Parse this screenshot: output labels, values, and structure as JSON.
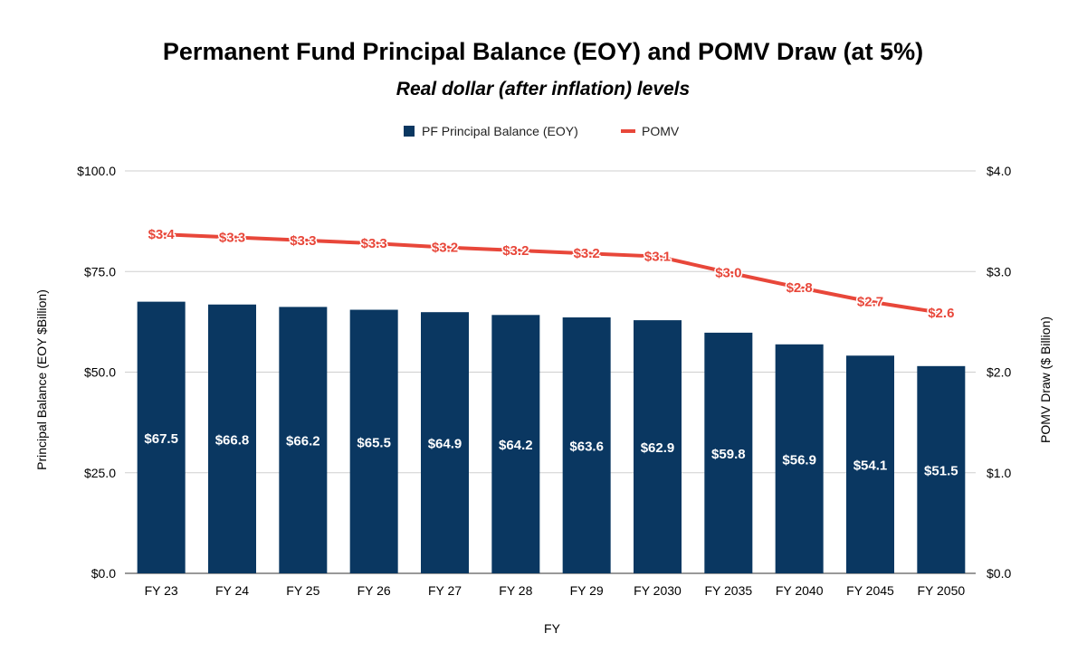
{
  "chart_data": {
    "type": "bar",
    "title": "Permanent Fund Principal Balance (EOY) and POMV Draw (at 5%)",
    "subtitle": "Real dollar (after inflation) levels",
    "xlabel": "FY",
    "ylabel": "Principal Balance (EOY $Billion)",
    "y2label": "POMV Draw ($ Billion)",
    "categories": [
      "FY 23",
      "FY 24",
      "FY 25",
      "FY 26",
      "FY 27",
      "FY 28",
      "FY 29",
      "FY 2030",
      "FY 2035",
      "FY 2040",
      "FY 2045",
      "FY 2050"
    ],
    "ylim": [
      0,
      100
    ],
    "y2lim": [
      0,
      4
    ],
    "yticks": [
      "$0.0",
      "$25.0",
      "$50.0",
      "$75.0",
      "$100.0"
    ],
    "y2ticks": [
      "$0.0",
      "$1.0",
      "$2.0",
      "$3.0",
      "$4.0"
    ],
    "grid": true,
    "legend_position": "top-center",
    "series": [
      {
        "name": "PF Principal Balance (EOY)",
        "type": "bar",
        "axis": "left",
        "color": "#0a3761",
        "values": [
          67.5,
          66.8,
          66.2,
          65.5,
          64.9,
          64.2,
          63.6,
          62.9,
          59.8,
          56.9,
          54.1,
          51.5
        ],
        "labels": [
          "$67.5",
          "$66.8",
          "$66.2",
          "$65.5",
          "$64.9",
          "$64.2",
          "$63.6",
          "$62.9",
          "$59.8",
          "$56.9",
          "$54.1",
          "$51.5"
        ]
      },
      {
        "name": "POMV",
        "type": "line",
        "axis": "right",
        "color": "#e8473a",
        "values": [
          3.37,
          3.34,
          3.31,
          3.28,
          3.24,
          3.21,
          3.18,
          3.15,
          2.99,
          2.84,
          2.7,
          2.59
        ],
        "labels": [
          "$3.4",
          "$3.3",
          "$3.3",
          "$3.3",
          "$3.2",
          "$3.2",
          "$3.2",
          "$3.1",
          "$3.0",
          "$2.8",
          "$2.7",
          "$2.6"
        ]
      }
    ]
  }
}
